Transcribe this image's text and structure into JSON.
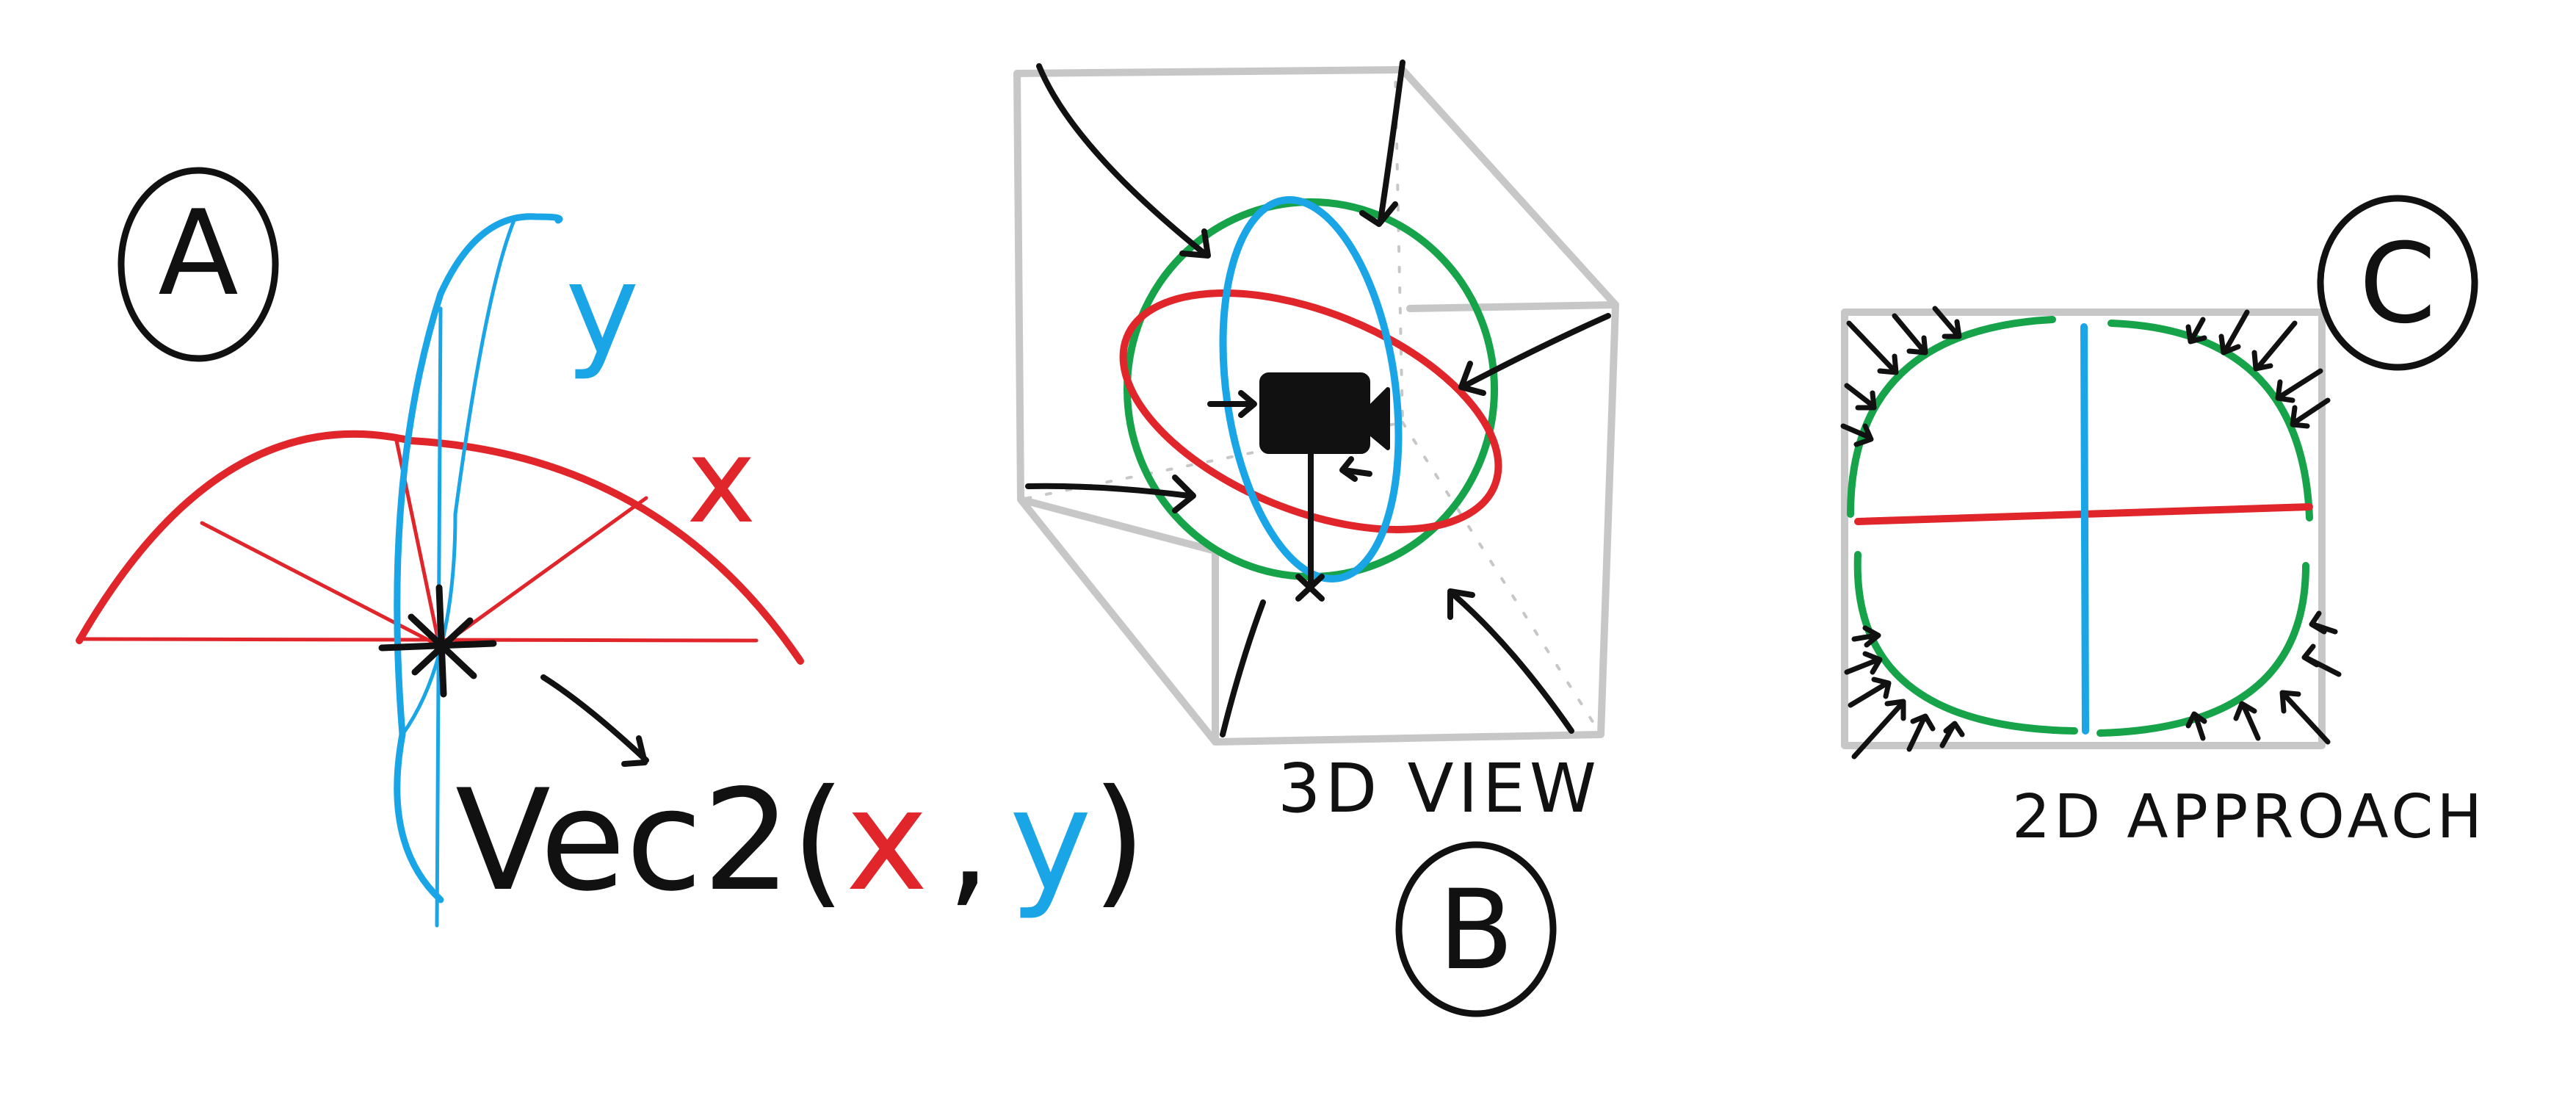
{
  "colors": {
    "ink": "#111111",
    "x_axis": "#e0262b",
    "y_axis": "#1aa5e6",
    "z_axis": "#16a34a",
    "box": "#c7c7c7"
  },
  "panel_a": {
    "label": "A",
    "y_label": "y",
    "x_label": "x",
    "formula_prefix": "Vec2(",
    "formula_x": "x",
    "formula_sep": ",",
    "formula_y": "y",
    "formula_suffix": ")"
  },
  "panel_b": {
    "label": "B",
    "caption": "3D VIEW",
    "camera_icon": "video-camera-icon"
  },
  "panel_c": {
    "label": "C",
    "caption": "2D APPROACH"
  }
}
